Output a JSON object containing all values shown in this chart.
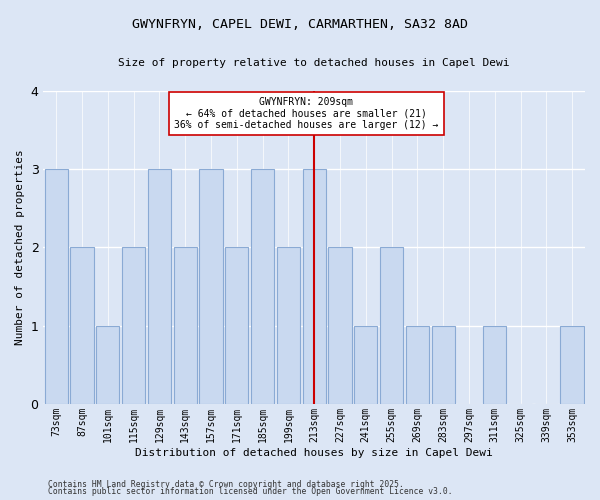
{
  "title1": "GWYNFRYN, CAPEL DEWI, CARMARTHEN, SA32 8AD",
  "title2": "Size of property relative to detached houses in Capel Dewi",
  "xlabel": "Distribution of detached houses by size in Capel Dewi",
  "ylabel": "Number of detached properties",
  "categories": [
    "73sqm",
    "87sqm",
    "101sqm",
    "115sqm",
    "129sqm",
    "143sqm",
    "157sqm",
    "171sqm",
    "185sqm",
    "199sqm",
    "213sqm",
    "227sqm",
    "241sqm",
    "255sqm",
    "269sqm",
    "283sqm",
    "297sqm",
    "311sqm",
    "325sqm",
    "339sqm",
    "353sqm"
  ],
  "values": [
    3,
    2,
    1,
    2,
    3,
    2,
    3,
    2,
    3,
    2,
    3,
    2,
    1,
    2,
    1,
    1,
    0,
    1,
    0,
    0,
    1
  ],
  "bar_color": "#c9d9f0",
  "bar_edge_color": "#8aaad4",
  "vline_index": 10,
  "vline_color": "#cc0000",
  "annotation_title": "GWYNFRYN: 209sqm",
  "annotation_line1": "← 64% of detached houses are smaller (21)",
  "annotation_line2": "36% of semi-detached houses are larger (12) →",
  "annotation_box_color": "#ffffff",
  "annotation_box_edge": "#cc0000",
  "ylim": [
    0,
    4
  ],
  "yticks": [
    0,
    1,
    2,
    3,
    4
  ],
  "bg_color": "#dce6f5",
  "grid_color": "#ffffff",
  "footer1": "Contains HM Land Registry data © Crown copyright and database right 2025.",
  "footer2": "Contains public sector information licensed under the Open Government Licence v3.0."
}
